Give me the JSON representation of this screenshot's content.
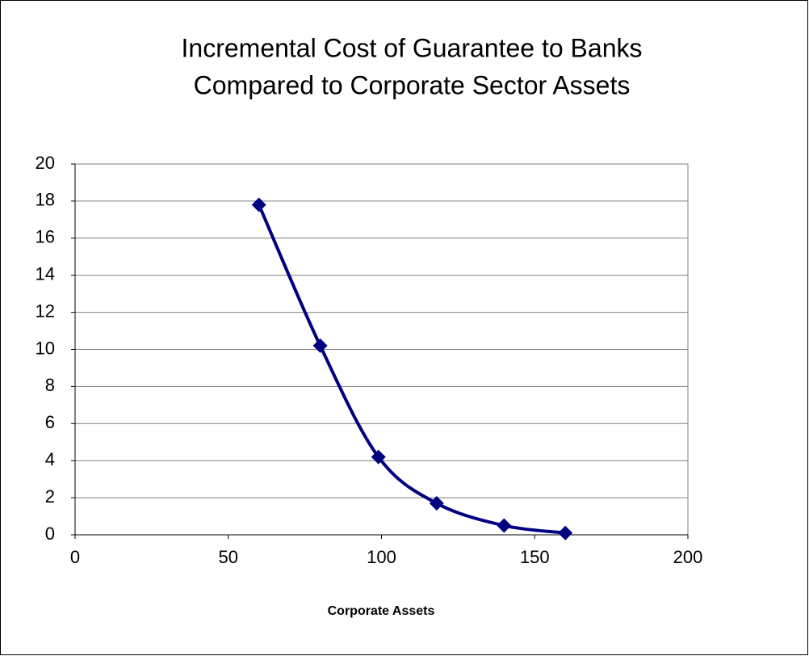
{
  "chart_data": {
    "type": "scatter",
    "title": [
      "Incremental Cost of Guarantee to Banks",
      "Compared to Corporate Sector Assets"
    ],
    "x_label": "Corporate Assets",
    "series": [
      {
        "color": "#000080",
        "x": [
          60,
          80,
          99,
          118,
          140,
          160
        ],
        "values": [
          17.8,
          10.2,
          4.2,
          1.7,
          0.5,
          0.1
        ]
      }
    ],
    "smooth": true,
    "xlim": [
      0,
      200
    ],
    "xticks": [
      0,
      50,
      100,
      150,
      200
    ],
    "ylim": [
      0,
      20
    ],
    "yticks": [
      0,
      2,
      4,
      6,
      8,
      10,
      12,
      14,
      16,
      18,
      20
    ],
    "grid": true
  }
}
